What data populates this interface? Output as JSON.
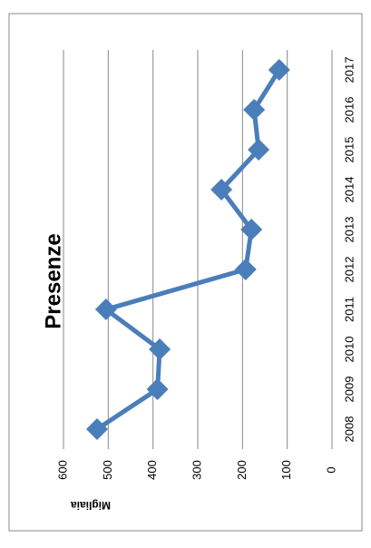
{
  "chart_data": {
    "type": "line",
    "title": "Presenze",
    "y_label": "Migliaia",
    "categories": [
      "2008",
      "2009",
      "2010",
      "2011",
      "2012",
      "2013",
      "2014",
      "2015",
      "2016",
      "2017"
    ],
    "values": [
      525,
      390,
      385,
      505,
      193,
      180,
      247,
      164,
      174,
      118
    ],
    "color": "#4a7ebb",
    "ylim": [
      0,
      600
    ],
    "yticks": [
      0,
      100,
      200,
      300,
      400,
      500,
      600
    ],
    "grid": true
  }
}
